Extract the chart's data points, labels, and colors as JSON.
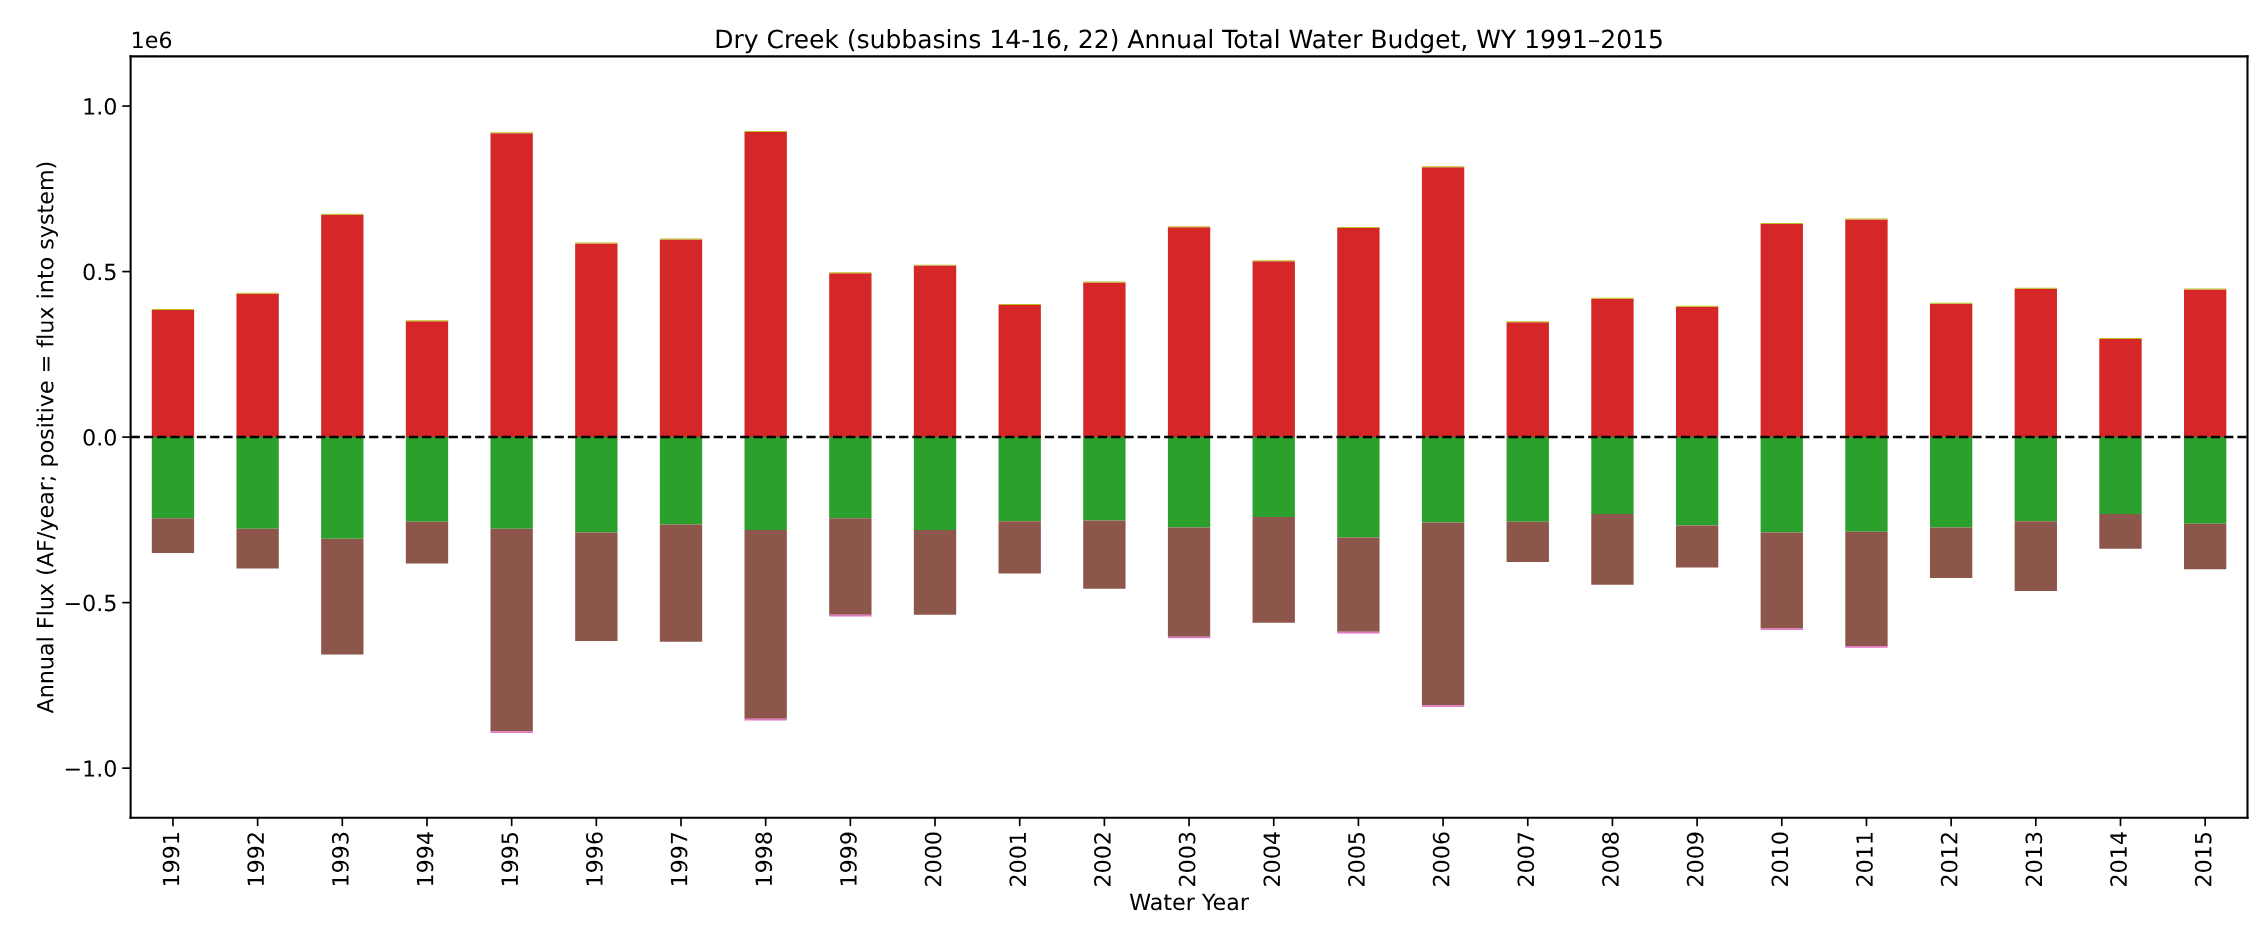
{
  "chart_data": {
    "type": "bar",
    "stacked": true,
    "title": "Dry Creek (subbasins 14-16, 22) Annual Total Water Budget, WY 1991–2015",
    "xlabel": "Water Year",
    "ylabel": "Annual Flux (AF/year; positive = flux into system)",
    "categories": [
      "1991",
      "1992",
      "1993",
      "1994",
      "1995",
      "1996",
      "1997",
      "1998",
      "1999",
      "2000",
      "2001",
      "2002",
      "2003",
      "2004",
      "2005",
      "2006",
      "2007",
      "2008",
      "2009",
      "2010",
      "2011",
      "2012",
      "2013",
      "2014",
      "2015"
    ],
    "series": [
      {
        "color": "#d62728",
        "values": [
          0.384,
          0.433,
          0.672,
          0.35,
          0.918,
          0.585,
          0.597,
          0.922,
          0.495,
          0.518,
          0.399,
          0.467,
          0.634,
          0.531,
          0.632,
          0.815,
          0.347,
          0.418,
          0.394,
          0.644,
          0.657,
          0.403,
          0.448,
          0.296,
          0.446
        ]
      },
      {
        "color": "#bcbd22",
        "values": [
          0.003,
          0.003,
          0.003,
          0.003,
          0.003,
          0.003,
          0.003,
          0.003,
          0.003,
          0.003,
          0.003,
          0.003,
          0.003,
          0.003,
          0.003,
          0.003,
          0.003,
          0.003,
          0.003,
          0.003,
          0.003,
          0.003,
          0.003,
          0.003,
          0.003
        ]
      },
      {
        "color": "#2ca02c",
        "values": [
          -0.245,
          -0.277,
          -0.307,
          -0.256,
          -0.277,
          -0.288,
          -0.264,
          -0.281,
          -0.245,
          -0.281,
          -0.254,
          -0.252,
          -0.273,
          -0.241,
          -0.303,
          -0.258,
          -0.256,
          -0.232,
          -0.267,
          -0.288,
          -0.286,
          -0.273,
          -0.254,
          -0.232,
          -0.262
        ]
      },
      {
        "color": "#8c564b",
        "values": [
          -0.105,
          -0.12,
          -0.35,
          -0.126,
          -0.612,
          -0.328,
          -0.354,
          -0.57,
          -0.292,
          -0.256,
          -0.158,
          -0.206,
          -0.33,
          -0.32,
          -0.285,
          -0.552,
          -0.121,
          -0.214,
          -0.127,
          -0.29,
          -0.345,
          -0.153,
          -0.211,
          -0.105,
          -0.137
        ]
      },
      {
        "color": "#e377c2",
        "values": [
          null,
          null,
          null,
          null,
          -0.005,
          null,
          null,
          -0.005,
          -0.005,
          null,
          null,
          null,
          -0.005,
          null,
          -0.005,
          -0.005,
          null,
          null,
          null,
          -0.005,
          -0.005,
          null,
          null,
          null,
          null
        ]
      }
    ],
    "ylim": [
      -1.15,
      1.15
    ],
    "yticks": [
      {
        "value": -1.0,
        "label": "−1.0"
      },
      {
        "value": -0.5,
        "label": "−0.5"
      },
      {
        "value": 0.0,
        "label": "0.0"
      },
      {
        "value": 0.5,
        "label": "0.5"
      },
      {
        "value": 1.0,
        "label": "1.0"
      }
    ],
    "ref_lines": [
      {
        "axis": "y",
        "value": 0,
        "color": "#000000",
        "line_style": "dashed"
      }
    ],
    "annotations": [
      "1e6"
    ],
    "grid": false,
    "legend": false
  }
}
